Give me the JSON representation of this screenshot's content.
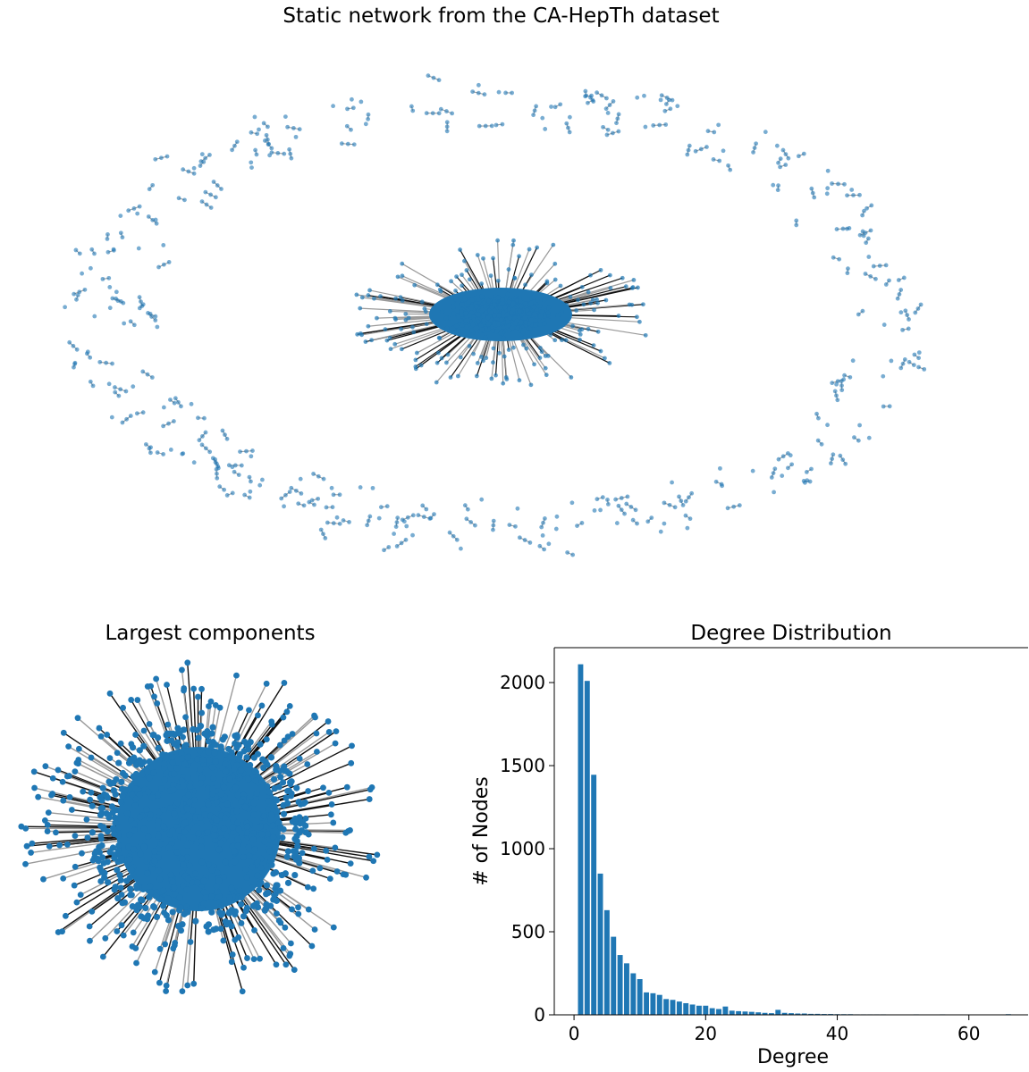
{
  "titles": {
    "main": "Static network from the CA-HepTh dataset",
    "largest_components": "Largest components",
    "degree_distribution": "Degree Distribution"
  },
  "colors": {
    "node": "#1f77b4",
    "edge_light": "#9a9a9a",
    "edge_dark": "#111111"
  },
  "chart_data": [
    {
      "type": "network",
      "title": "Static network from the CA-HepTh dataset",
      "layout": "dense central giant component surrounded by a ring of small components"
    },
    {
      "type": "network",
      "title": "Largest components",
      "layout": "dense single giant component"
    },
    {
      "type": "bar",
      "title": "Degree Distribution",
      "xlabel": "Degree",
      "ylabel": "# of Nodes",
      "xlim": [
        -3,
        69
      ],
      "ylim": [
        0,
        2210
      ],
      "xticks": [
        0,
        20,
        40,
        60
      ],
      "yticks": [
        0,
        500,
        1000,
        1500,
        2000
      ],
      "x": [
        1,
        2,
        3,
        4,
        5,
        6,
        7,
        8,
        9,
        10,
        11,
        12,
        13,
        14,
        15,
        16,
        17,
        18,
        19,
        20,
        21,
        22,
        23,
        24,
        25,
        26,
        27,
        28,
        29,
        30,
        31,
        32,
        33,
        34,
        35,
        36,
        37,
        38,
        39,
        40,
        41,
        42,
        43,
        44,
        45,
        46,
        47,
        48,
        49,
        50,
        51,
        52,
        53,
        54,
        55,
        56,
        57,
        58,
        59,
        60,
        61,
        62,
        63,
        64,
        65,
        66
      ],
      "values": [
        2110,
        2010,
        1445,
        850,
        630,
        470,
        360,
        310,
        250,
        215,
        135,
        130,
        120,
        95,
        90,
        80,
        70,
        62,
        55,
        55,
        40,
        35,
        50,
        25,
        22,
        20,
        18,
        15,
        12,
        10,
        30,
        12,
        10,
        8,
        8,
        6,
        6,
        5,
        5,
        4,
        4,
        4,
        3,
        3,
        3,
        3,
        3,
        2,
        2,
        2,
        2,
        3,
        2,
        2,
        2,
        3,
        2,
        2,
        1,
        1,
        2,
        1,
        1,
        1,
        1,
        4
      ]
    }
  ]
}
